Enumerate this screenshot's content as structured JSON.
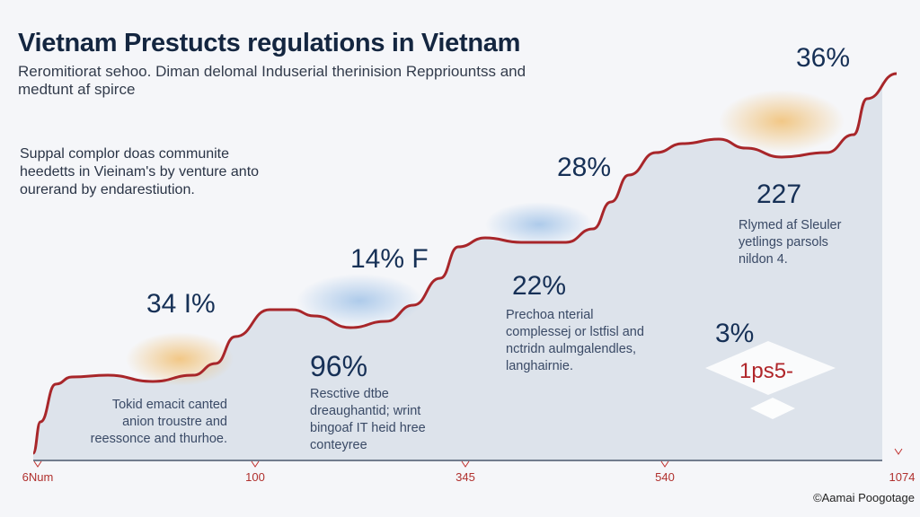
{
  "header": {
    "title": "Vietnam Prestucts regulations in Vietnam",
    "subtitle": "Reromitiorat sehoo. Diman delomal Induserial therinision Reppriountss and medtunt af spirce"
  },
  "intro_text": "Suppal complor doas communite heedetts in Vieinam's by venture anto ourerand by endarestiution.",
  "credit": "©Aamai Poogotage",
  "colors": {
    "line": "#a8262a",
    "area": "#dde3eb",
    "background": "#f5f6f9",
    "text": "#163056"
  },
  "chart_data": {
    "type": "area",
    "title": "Vietnam Prestucts regulations in Vietnam",
    "x_tick_labels": [
      "6Num",
      "100",
      "345",
      "540",
      "1074"
    ],
    "grid": false,
    "annotations": [
      {
        "value": "34 I%",
        "text": "Tokid emacit canted anion troustre and reessonce and thurhoe."
      },
      {
        "value": "14% F",
        "text": ""
      },
      {
        "value": "96%",
        "text": "Resctive dtbe dreaughantid; wrint bingoaf IT heid hree conteyree"
      },
      {
        "value": "28%",
        "text": ""
      },
      {
        "value": "22%",
        "text": "Prechoa nterial complessej or lstfisl and nctridn aulmgalendles, langhairnie."
      },
      {
        "value": "36%",
        "text": ""
      },
      {
        "value": "227",
        "text": "Rlymed af Sleuler yetlings parsols nildon 4."
      },
      {
        "value": "3%",
        "text": ""
      }
    ],
    "stamp_text": "1ps5-"
  }
}
